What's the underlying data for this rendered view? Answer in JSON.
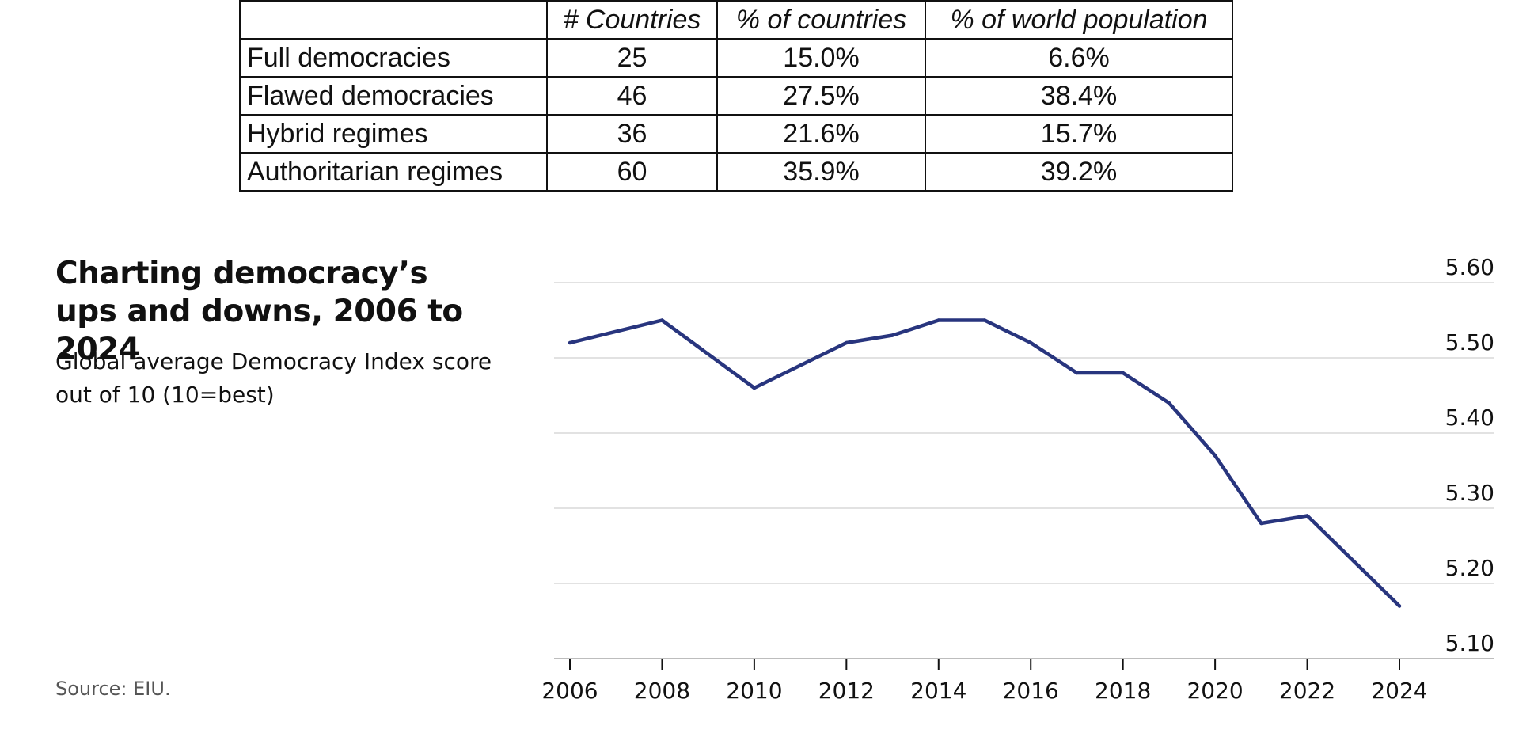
{
  "table": {
    "headers": [
      "",
      "# Countries",
      "% of countries",
      "% of world population"
    ],
    "rows": [
      [
        "Full democracies",
        "25",
        "15.0%",
        "6.6%"
      ],
      [
        "Flawed democracies",
        "46",
        "27.5%",
        "38.4%"
      ],
      [
        "Hybrid regimes",
        "36",
        "21.6%",
        "15.7%"
      ],
      [
        "Authoritarian regimes",
        "60",
        "35.9%",
        "39.2%"
      ]
    ]
  },
  "chart_data": {
    "type": "line",
    "title": "Charting democracy’s ups and downs, 2006 to 2024",
    "subtitle": "Global average Democracy Index score out of 10 (10=best)",
    "source": "Source: EIU.",
    "x": [
      2006,
      2008,
      2010,
      2011,
      2012,
      2013,
      2014,
      2015,
      2016,
      2017,
      2018,
      2019,
      2020,
      2021,
      2022,
      2023,
      2024
    ],
    "series": [
      {
        "values": [
          5.52,
          5.55,
          5.46,
          5.49,
          5.52,
          5.53,
          5.55,
          5.55,
          5.52,
          5.48,
          5.48,
          5.44,
          5.37,
          5.28,
          5.29,
          5.23,
          5.17
        ]
      }
    ],
    "xticks": [
      "2006",
      "2008",
      "2010",
      "2012",
      "2014",
      "2016",
      "2018",
      "2020",
      "2022",
      "2024"
    ],
    "yticks": [
      "5.10",
      "5.20",
      "5.30",
      "5.40",
      "5.50",
      "5.60"
    ],
    "ylim": [
      5.1,
      5.6
    ],
    "xlim": [
      2006,
      2024
    ],
    "y_axis_position": "right",
    "grid": true,
    "line_color": "#28357e",
    "grid_color": "#d9d9d9"
  }
}
